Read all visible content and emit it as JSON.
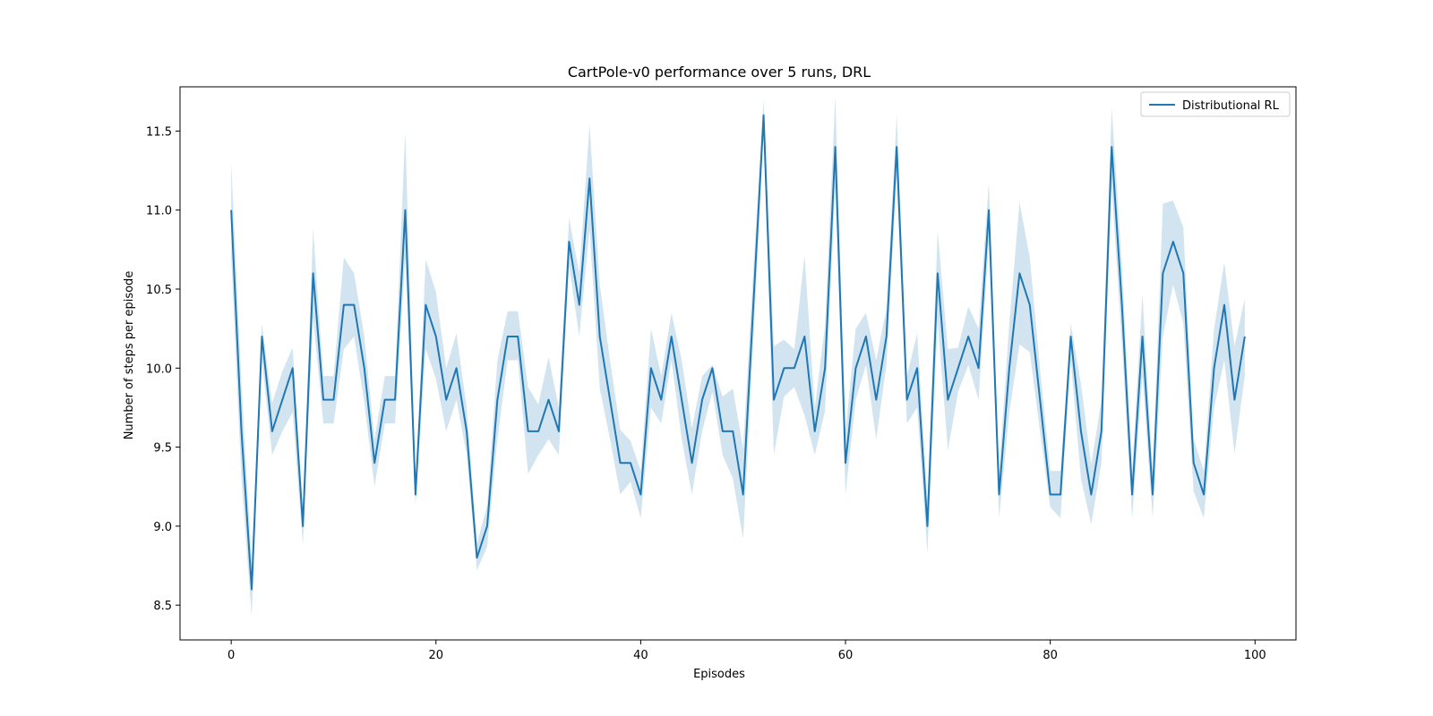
{
  "chart_data": {
    "type": "line",
    "title": "CartPole-v0 performance over 5 runs, DRL",
    "xlabel": "Episodes",
    "ylabel": "Number of steps per episode",
    "xlim": [
      -5,
      104
    ],
    "ylim": [
      8.28,
      11.78
    ],
    "xticks": [
      0,
      20,
      40,
      60,
      80,
      100
    ],
    "yticks": [
      8.5,
      9.0,
      9.5,
      10.0,
      10.5,
      11.0,
      11.5
    ],
    "ytick_labels": [
      "8.5",
      "9.0",
      "9.5",
      "10.0",
      "10.5",
      "11.0",
      "11.5"
    ],
    "grid": false,
    "legend_placement": "top-right",
    "series": [
      {
        "name": "Distributional RL",
        "color": "#1f77b4",
        "band_color": "#1f77b4",
        "x": [
          0,
          1,
          2,
          3,
          4,
          5,
          6,
          7,
          8,
          9,
          10,
          11,
          12,
          13,
          14,
          15,
          16,
          17,
          18,
          19,
          20,
          21,
          22,
          23,
          24,
          25,
          26,
          27,
          28,
          29,
          30,
          31,
          32,
          33,
          34,
          35,
          36,
          37,
          38,
          39,
          40,
          41,
          42,
          43,
          44,
          45,
          46,
          47,
          48,
          49,
          50,
          51,
          52,
          53,
          54,
          55,
          56,
          57,
          58,
          59,
          60,
          61,
          62,
          63,
          64,
          65,
          66,
          67,
          68,
          69,
          70,
          71,
          72,
          73,
          74,
          75,
          76,
          77,
          78,
          79,
          80,
          81,
          82,
          83,
          84,
          85,
          86,
          87,
          88,
          89,
          90,
          91,
          92,
          93,
          94,
          95,
          96,
          97,
          98,
          99
        ],
        "values": [
          11.0,
          9.6,
          8.6,
          10.2,
          9.6,
          9.8,
          10.0,
          9.0,
          10.6,
          9.8,
          9.8,
          10.4,
          10.4,
          10.0,
          9.4,
          9.8,
          9.8,
          11.0,
          9.2,
          10.4,
          10.2,
          9.8,
          10.0,
          9.6,
          8.8,
          9.0,
          9.8,
          10.2,
          10.2,
          9.6,
          9.6,
          9.8,
          9.6,
          10.8,
          10.4,
          11.2,
          10.2,
          9.8,
          9.4,
          9.4,
          9.2,
          10.0,
          9.8,
          10.2,
          9.8,
          9.4,
          9.8,
          10.0,
          9.6,
          9.6,
          9.2,
          10.4,
          11.6,
          9.8,
          10.0,
          10.0,
          10.2,
          9.6,
          10.0,
          11.4,
          9.4,
          10.0,
          10.2,
          9.8,
          10.2,
          11.4,
          9.8,
          10.0,
          9.0,
          10.6,
          9.8,
          10.0,
          10.2,
          10.0,
          11.0,
          9.2,
          10.0,
          10.6,
          10.4,
          9.8,
          9.2,
          9.2,
          10.2,
          9.6,
          9.2,
          9.6,
          11.4,
          10.4,
          9.2,
          10.2,
          9.2,
          10.6,
          10.8,
          10.6,
          9.4,
          9.2,
          10.0,
          10.4,
          9.8,
          10.2
        ],
        "lower": [
          10.7,
          9.3,
          8.43,
          10.05,
          9.45,
          9.6,
          9.72,
          8.88,
          10.32,
          9.65,
          9.65,
          10.12,
          10.2,
          9.78,
          9.25,
          9.65,
          9.65,
          10.7,
          9.13,
          10.12,
          9.93,
          9.6,
          9.8,
          9.45,
          8.72,
          8.87,
          9.55,
          10.05,
          10.05,
          9.33,
          9.45,
          9.55,
          9.45,
          10.65,
          10.2,
          10.88,
          9.87,
          9.55,
          9.2,
          9.28,
          9.05,
          9.75,
          9.65,
          10.05,
          9.55,
          9.2,
          9.6,
          9.85,
          9.45,
          9.3,
          8.92,
          10.17,
          11.48,
          9.45,
          9.82,
          9.88,
          9.7,
          9.45,
          9.73,
          11.15,
          9.2,
          9.8,
          10.02,
          9.55,
          10.02,
          11.2,
          9.65,
          9.75,
          8.83,
          10.3,
          9.48,
          9.85,
          10.02,
          9.8,
          10.8,
          9.05,
          9.72,
          10.15,
          10.1,
          9.6,
          9.12,
          9.05,
          10.05,
          9.3,
          9.01,
          9.4,
          11.15,
          10.15,
          9.05,
          9.95,
          9.05,
          10.2,
          10.53,
          10.28,
          9.22,
          9.05,
          9.75,
          10.05,
          9.46,
          9.95
        ],
        "upper": [
          11.3,
          9.9,
          8.77,
          10.28,
          9.78,
          9.98,
          10.13,
          9.12,
          10.88,
          9.95,
          9.95,
          10.7,
          10.6,
          10.2,
          9.55,
          9.95,
          9.95,
          11.5,
          9.27,
          10.69,
          10.48,
          10.0,
          10.22,
          9.75,
          8.89,
          9.13,
          10.05,
          10.36,
          10.36,
          9.88,
          9.77,
          10.07,
          9.75,
          10.95,
          10.6,
          11.54,
          10.53,
          10.05,
          9.61,
          9.54,
          9.35,
          10.25,
          9.95,
          10.35,
          10.05,
          9.62,
          9.95,
          10.02,
          9.82,
          9.87,
          9.49,
          10.63,
          11.7,
          10.14,
          10.18,
          10.12,
          10.71,
          9.75,
          10.27,
          11.72,
          9.6,
          10.25,
          10.35,
          10.05,
          10.38,
          11.6,
          9.95,
          10.22,
          9.17,
          10.87,
          10.12,
          10.13,
          10.39,
          10.25,
          11.18,
          9.35,
          10.28,
          11.05,
          10.7,
          10.0,
          9.35,
          9.35,
          10.28,
          9.9,
          9.39,
          9.8,
          11.65,
          10.65,
          9.35,
          10.47,
          9.35,
          11.04,
          11.06,
          10.89,
          9.55,
          9.35,
          10.25,
          10.67,
          10.14,
          10.44
        ]
      }
    ]
  }
}
